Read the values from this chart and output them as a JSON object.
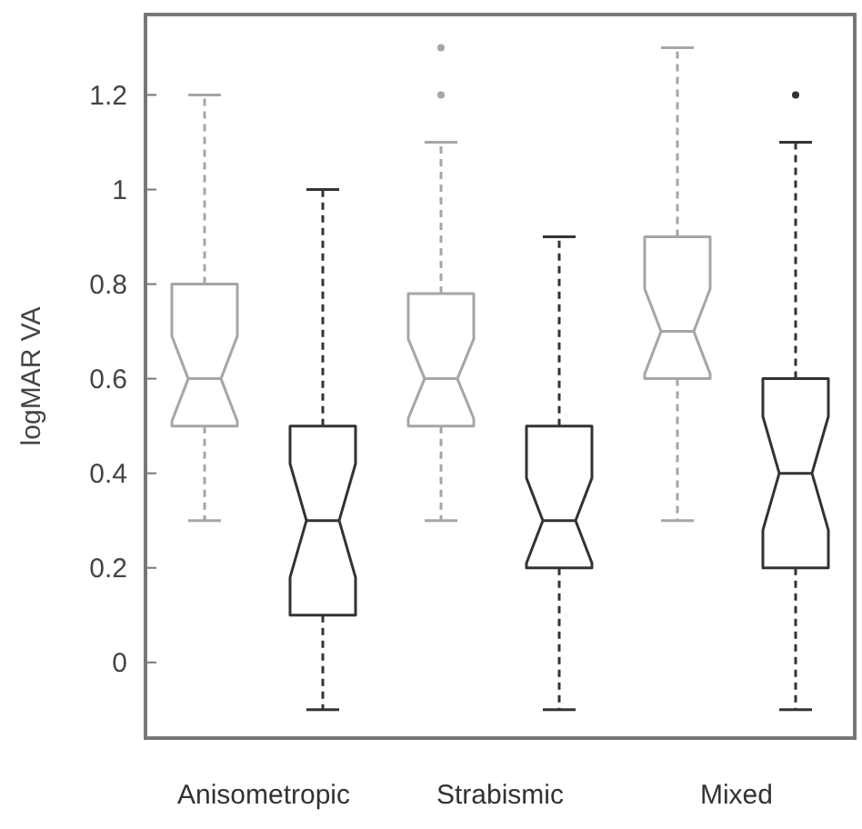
{
  "chart_data": {
    "type": "box",
    "ylabel": "logMAR VA",
    "categories": [
      "Anisometropic",
      "Strabismic",
      "Mixed"
    ],
    "ylim": [
      -0.16,
      1.37
    ],
    "yticks": [
      0,
      0.2,
      0.4,
      0.6,
      0.8,
      1,
      1.2
    ],
    "grid": false,
    "series": [
      {
        "color": "#a6a6a6",
        "boxes": [
          {
            "low": 0.3,
            "q1": 0.5,
            "median": 0.6,
            "q3": 0.8,
            "high": 1.2
          },
          {
            "low": 0.3,
            "q1": 0.5,
            "median": 0.6,
            "q3": 0.78,
            "high": 1.1,
            "outliers": [
              1.2,
              1.3
            ]
          },
          {
            "low": 0.3,
            "q1": 0.6,
            "median": 0.7,
            "q3": 0.9,
            "high": 1.3
          }
        ]
      },
      {
        "color": "#333333",
        "boxes": [
          {
            "low": -0.1,
            "q1": 0.1,
            "median": 0.3,
            "q3": 0.5,
            "high": 1.0
          },
          {
            "low": -0.1,
            "q1": 0.2,
            "median": 0.3,
            "q3": 0.5,
            "high": 0.9
          },
          {
            "low": -0.1,
            "q1": 0.2,
            "median": 0.4,
            "q3": 0.6,
            "high": 1.1,
            "outliers": [
              1.2
            ]
          }
        ]
      }
    ]
  }
}
